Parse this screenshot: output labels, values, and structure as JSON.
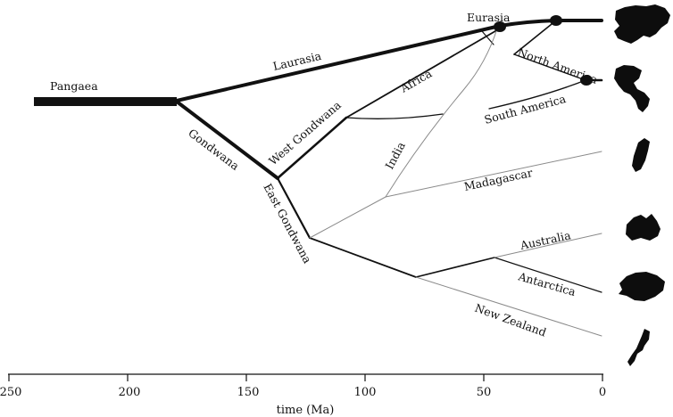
{
  "axis": {
    "title": "time (Ma)",
    "ticks": [
      "250",
      "200",
      "150",
      "100",
      "50",
      "0"
    ]
  },
  "labels": {
    "pangaea": "Pangaea",
    "laurasia": "Laurasia",
    "gondwana": "Gondwana",
    "west_gondwana": "West Gondwana",
    "east_gondwana": "East Gondwana",
    "africa": "Africa",
    "india": "India",
    "madagascar": "Madagascar",
    "south_america": "South America",
    "north_america": "North America",
    "eurasia": "Eurasia",
    "australia": "Australia",
    "antarctica": "Antarctica",
    "new_zealand": "New Zealand"
  },
  "colors": {
    "line": "#111111",
    "faint": "#8a8a8a",
    "silhouette": "#0d0d0d"
  },
  "icons": [
    "eurasia-silhouette-icon",
    "americas-silhouette-icon",
    "madagascar-silhouette-icon",
    "australia-silhouette-icon",
    "antarctica-silhouette-icon",
    "new-zealand-silhouette-icon"
  ]
}
